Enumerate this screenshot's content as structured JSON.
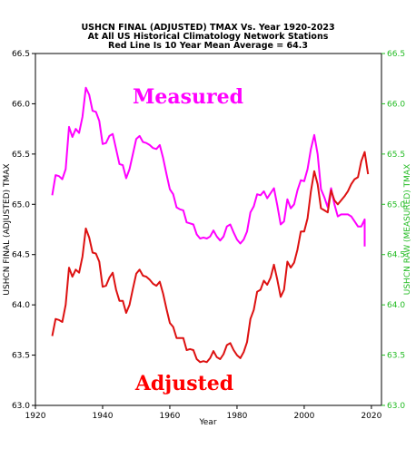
{
  "chart_data": {
    "type": "line",
    "title_lines": [
      "USHCN FINAL (ADJUSTED) TMAX Vs. Year 1920-2023",
      "At All US Historical Climatology Network Stations",
      "Red Line Is 10 Year Mean  Average = 64.3"
    ],
    "xlabel": "Year",
    "ylabel_left": "USHCN FINAL (ADJUSTED) TMAX",
    "ylabel_right": "USHCN RAW (MEASURED) TMAX",
    "xlim": [
      1920,
      2023
    ],
    "ylim": [
      63.0,
      66.5
    ],
    "x_ticks": [
      "1920",
      "1940",
      "1960",
      "1980",
      "2000",
      "2020"
    ],
    "y_ticks_left": [
      "63.0",
      "63.5",
      "64.0",
      "64.5",
      "65.0",
      "65.5",
      "66.0",
      "66.5"
    ],
    "y_ticks_right": [
      "63.0",
      "63.5",
      "64.0",
      "64.5",
      "65.0",
      "65.5",
      "66.0",
      "66.5"
    ],
    "colors": {
      "measured": "#ff00ff",
      "adjusted": "#dd1111",
      "right_axis": "#22bb22"
    },
    "annotations": {
      "measured": "Measured",
      "adjusted": "Adjusted"
    },
    "series": [
      {
        "key": "measured",
        "x": [
          1925,
          1926,
          1927,
          1928,
          1929,
          1930,
          1931,
          1932,
          1933,
          1934,
          1935,
          1936,
          1937,
          1938,
          1939,
          1940,
          1941,
          1942,
          1943,
          1944,
          1945,
          1946,
          1947,
          1948,
          1949,
          1950,
          1951,
          1952,
          1953,
          1954,
          1955,
          1956,
          1957,
          1958,
          1959,
          1960,
          1961,
          1962,
          1963,
          1964,
          1965,
          1966,
          1967,
          1968,
          1969,
          1970,
          1971,
          1972,
          1973,
          1974,
          1975,
          1976,
          1977,
          1978,
          1979,
          1980,
          1981,
          1982,
          1983,
          1984,
          1985,
          1986,
          1987,
          1988,
          1989,
          1990,
          1991,
          1992,
          1993,
          1994,
          1995,
          1996,
          1997,
          1998,
          1999,
          2000,
          2001,
          2002,
          2003,
          2004,
          2005,
          2006,
          2007,
          2008,
          2009,
          2010,
          2011,
          2012,
          2013,
          2014,
          2015,
          2016,
          2017,
          2018
        ],
        "y": [
          65.09,
          65.29,
          65.28,
          65.25,
          65.35,
          65.77,
          65.67,
          65.75,
          65.71,
          65.87,
          66.16,
          66.09,
          65.93,
          65.92,
          65.83,
          65.6,
          65.61,
          65.68,
          65.7,
          65.55,
          65.4,
          65.39,
          65.26,
          65.35,
          65.5,
          65.65,
          65.68,
          65.62,
          65.61,
          65.59,
          65.56,
          65.55,
          65.59,
          65.46,
          65.3,
          65.15,
          65.1,
          64.97,
          64.95,
          64.94,
          64.82,
          64.81,
          64.8,
          64.7,
          64.66,
          64.67,
          64.66,
          64.68,
          64.74,
          64.68,
          64.64,
          64.68,
          64.78,
          64.8,
          64.72,
          64.65,
          64.61,
          64.65,
          64.73,
          64.92,
          64.98,
          65.1,
          65.09,
          65.13,
          65.06,
          65.11,
          65.16,
          64.99,
          64.8,
          64.83,
          65.05,
          64.96,
          65.0,
          65.14,
          65.24,
          65.23,
          65.35,
          65.55,
          65.69,
          65.5,
          65.15,
          65.07,
          64.97,
          65.16,
          65.0,
          64.88,
          64.9,
          64.9,
          64.9,
          64.88,
          64.83,
          64.78,
          64.78,
          64.85
        ],
        "x_tail": [
          2018
        ],
        "y_tail": [
          64.58
        ]
      },
      {
        "key": "adjusted",
        "x": [
          1925,
          1926,
          1927,
          1928,
          1929,
          1930,
          1931,
          1932,
          1933,
          1934,
          1935,
          1936,
          1937,
          1938,
          1939,
          1940,
          1941,
          1942,
          1943,
          1944,
          1945,
          1946,
          1947,
          1948,
          1949,
          1950,
          1951,
          1952,
          1953,
          1954,
          1955,
          1956,
          1957,
          1958,
          1959,
          1960,
          1961,
          1962,
          1963,
          1964,
          1965,
          1966,
          1967,
          1968,
          1969,
          1970,
          1971,
          1972,
          1973,
          1974,
          1975,
          1976,
          1977,
          1978,
          1979,
          1980,
          1981,
          1982,
          1983,
          1984,
          1985,
          1986,
          1987,
          1988,
          1989,
          1990,
          1991,
          1992,
          1993,
          1994,
          1995,
          1996,
          1997,
          1998,
          1999,
          2000,
          2001,
          2002,
          2003,
          2004,
          2005,
          2006,
          2007,
          2008,
          2009,
          2010,
          2011,
          2012,
          2013,
          2014,
          2015,
          2016,
          2017,
          2018
        ],
        "y": [
          63.69,
          63.86,
          63.85,
          63.83,
          64.0,
          64.37,
          64.28,
          64.35,
          64.32,
          64.48,
          64.76,
          64.67,
          64.52,
          64.51,
          64.43,
          64.18,
          64.19,
          64.27,
          64.32,
          64.15,
          64.04,
          64.04,
          63.92,
          64.0,
          64.16,
          64.31,
          64.35,
          64.29,
          64.28,
          64.25,
          64.21,
          64.19,
          64.23,
          64.11,
          63.96,
          63.82,
          63.78,
          63.67,
          63.67,
          63.67,
          63.55,
          63.56,
          63.55,
          63.46,
          63.43,
          63.44,
          63.43,
          63.47,
          63.54,
          63.48,
          63.46,
          63.51,
          63.6,
          63.62,
          63.55,
          63.5,
          63.47,
          63.53,
          63.63,
          63.86,
          63.95,
          64.13,
          64.15,
          64.24,
          64.2,
          64.27,
          64.4,
          64.25,
          64.08,
          64.15,
          64.43,
          64.37,
          64.42,
          64.55,
          64.73,
          64.73,
          64.86,
          65.13,
          65.33,
          65.2,
          64.96,
          64.94,
          64.92,
          65.14,
          65.04,
          65.0,
          65.04,
          65.08,
          65.13,
          65.2,
          65.25,
          65.27,
          65.43,
          65.52
        ],
        "x_tail": [
          2019
        ],
        "y_tail": [
          65.3
        ]
      }
    ]
  }
}
